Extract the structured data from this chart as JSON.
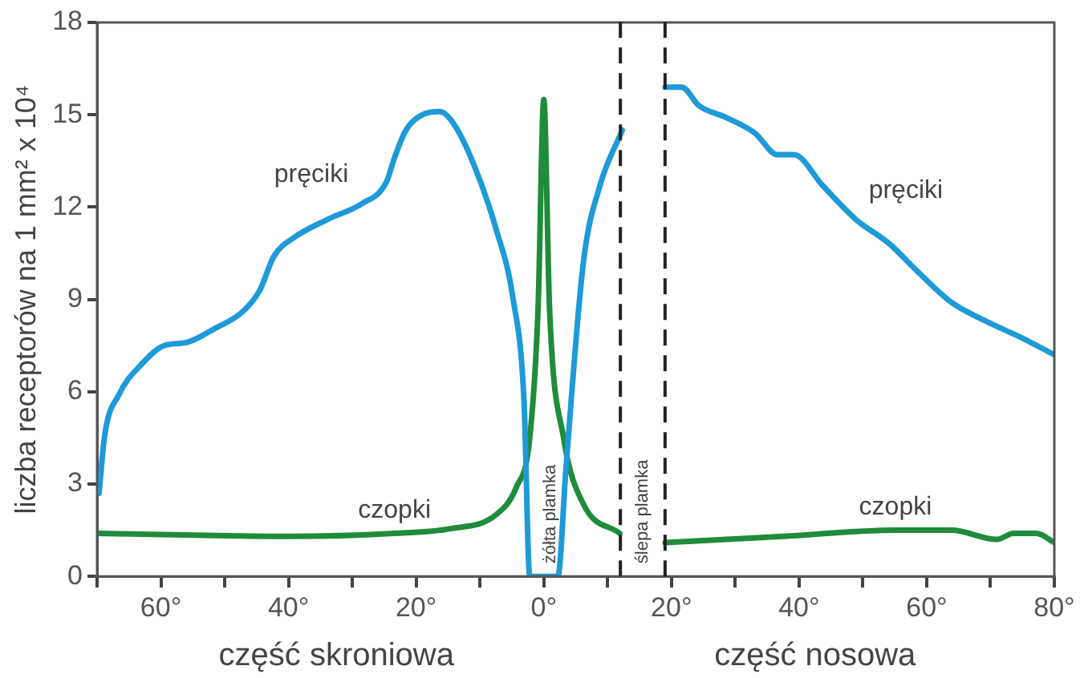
{
  "chart_data": {
    "type": "line",
    "ylabel": "liczba receptorów na 1 mm² x 10⁴",
    "xlim": [
      -70,
      80
    ],
    "ylim": [
      0,
      18
    ],
    "xticks": [
      {
        "value": -70,
        "label": null
      },
      {
        "value": -60,
        "label": "60°"
      },
      {
        "value": -50,
        "label": null
      },
      {
        "value": -40,
        "label": "40°"
      },
      {
        "value": -30,
        "label": null
      },
      {
        "value": -20,
        "label": "20°"
      },
      {
        "value": -10,
        "label": null
      },
      {
        "value": 0,
        "label": "0°"
      },
      {
        "value": 10,
        "label": null
      },
      {
        "value": 20,
        "label": "20°"
      },
      {
        "value": 30,
        "label": null
      },
      {
        "value": 40,
        "label": "40°"
      },
      {
        "value": 50,
        "label": null
      },
      {
        "value": 60,
        "label": "60°"
      },
      {
        "value": 70,
        "label": null
      },
      {
        "value": 80,
        "label": "80°"
      }
    ],
    "yticks": [
      0,
      3,
      6,
      9,
      12,
      15,
      18
    ],
    "grid": false,
    "legend": false,
    "marker": "none",
    "line_style": "solid",
    "series": [
      {
        "name": "pręciki",
        "color": "#1e9ad8",
        "x": [
          -69.7,
          -68.8,
          -66.6,
          -63,
          -59.5,
          -56,
          -51.6,
          -47.2,
          -44.5,
          -42.3,
          -39.2,
          -33.9,
          -28.6,
          -24.7,
          -23.4,
          -21.6,
          -19,
          -16.3,
          -14.1,
          -11,
          -7.5,
          -4.8,
          -3.1,
          -2.2,
          2.2,
          3.5,
          6.2,
          8.8,
          12.3
        ],
        "values": [
          2.7,
          4.6,
          5.9,
          6.9,
          7.5,
          7.6,
          8.05,
          8.6,
          9.3,
          10.4,
          11,
          11.6,
          12.1,
          12.8,
          13.6,
          14.5,
          15,
          15.1,
          14.7,
          13.4,
          11.3,
          9,
          5.7,
          0,
          0,
          3.6,
          10.2,
          12.7,
          14.5
        ]
      },
      {
        "name": "pręciki",
        "color": "#1e9ad8",
        "x": [
          19,
          21.6,
          24.3,
          28.7,
          33.1,
          36.6,
          39.2,
          43.7,
          48.9,
          54.2,
          58.6,
          63.9,
          69.2,
          75.4,
          80
        ],
        "values": [
          15.9,
          15.9,
          15.3,
          14.9,
          14.4,
          13.7,
          13.7,
          12.7,
          11.6,
          10.8,
          9.9,
          8.9,
          8.3,
          7.7,
          7.2
        ]
      },
      {
        "name": "czopki",
        "color": "#1f8c3b",
        "x": [
          -70,
          -40,
          -23.4,
          -14.6,
          -7.5,
          -4.3,
          -2.2,
          -0.9,
          0,
          0.9,
          3.1,
          6.2,
          11.9
        ],
        "values": [
          1.4,
          1.3,
          1.4,
          1.55,
          2,
          2.9,
          4.5,
          8.7,
          15.5,
          8.7,
          4.5,
          2.35,
          1.4
        ]
      },
      {
        "name": "czopki",
        "color": "#1f8c3b",
        "x": [
          19,
          37.5,
          55.1,
          63.9,
          71,
          73.6,
          77.2,
          80
        ],
        "values": [
          1.1,
          1.3,
          1.5,
          1.5,
          1.2,
          1.4,
          1.4,
          1.1
        ]
      }
    ],
    "ref_lines": [
      {
        "axis": "x",
        "value": 12,
        "color": "#222222",
        "line_style": "dashed"
      },
      {
        "axis": "x",
        "value": 19,
        "color": "#222222",
        "line_style": "dashed"
      }
    ],
    "annotations": [
      "żółta plamka",
      "ślepa plamka",
      "część skroniowa",
      "część nosowa"
    ]
  }
}
